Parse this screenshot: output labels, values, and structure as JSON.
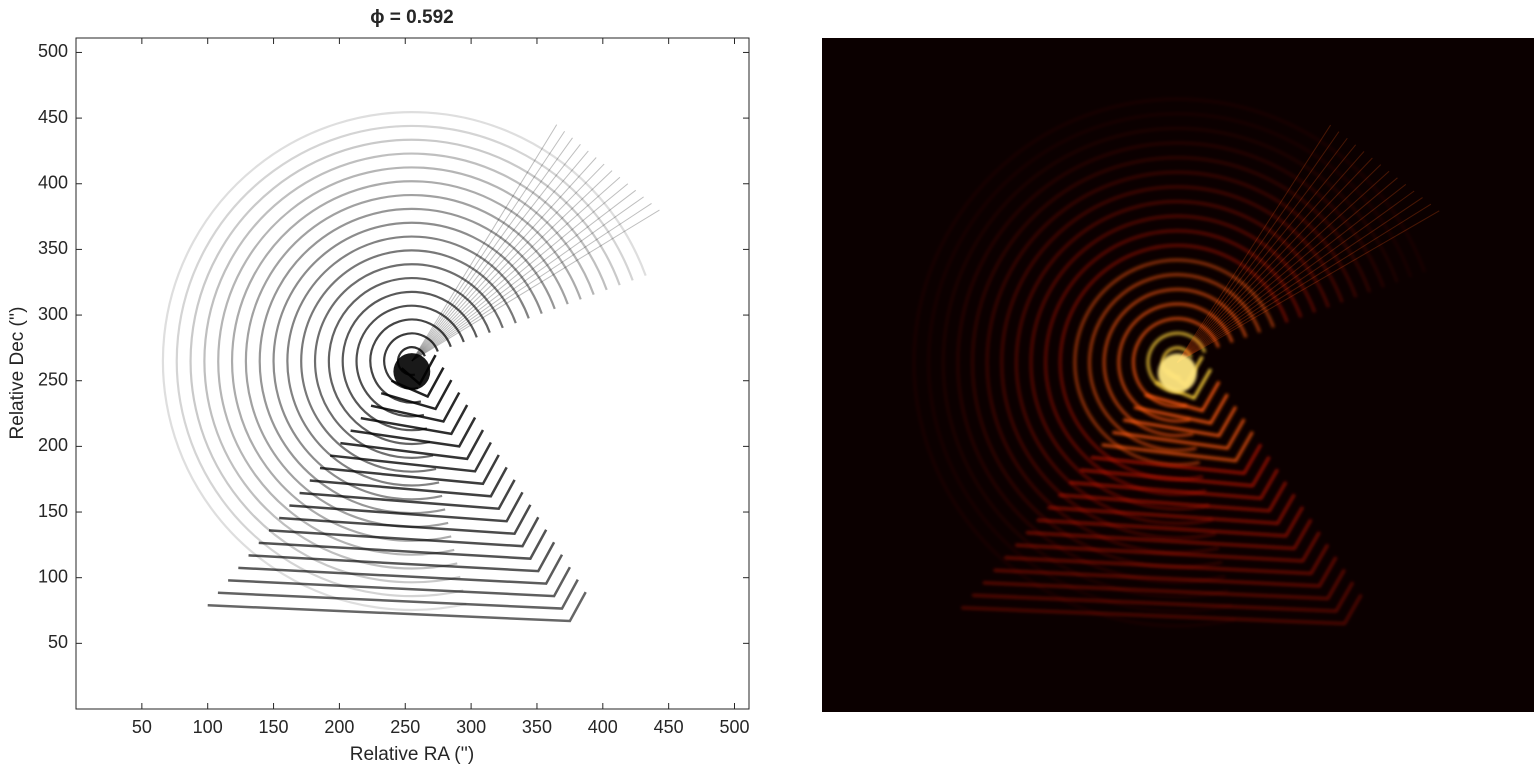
{
  "chart_data": {
    "type": "image",
    "title": "ϕ = 0.592",
    "xlabel": "Relative RA ('')",
    "ylabel": "Relative Dec ('')",
    "xlim": [
      0,
      511
    ],
    "ylim": [
      0,
      511
    ],
    "xticks": [
      50,
      100,
      150,
      200,
      250,
      300,
      350,
      400,
      450,
      500
    ],
    "yticks": [
      50,
      100,
      150,
      200,
      250,
      300,
      350,
      400,
      450,
      500
    ]
  }
}
